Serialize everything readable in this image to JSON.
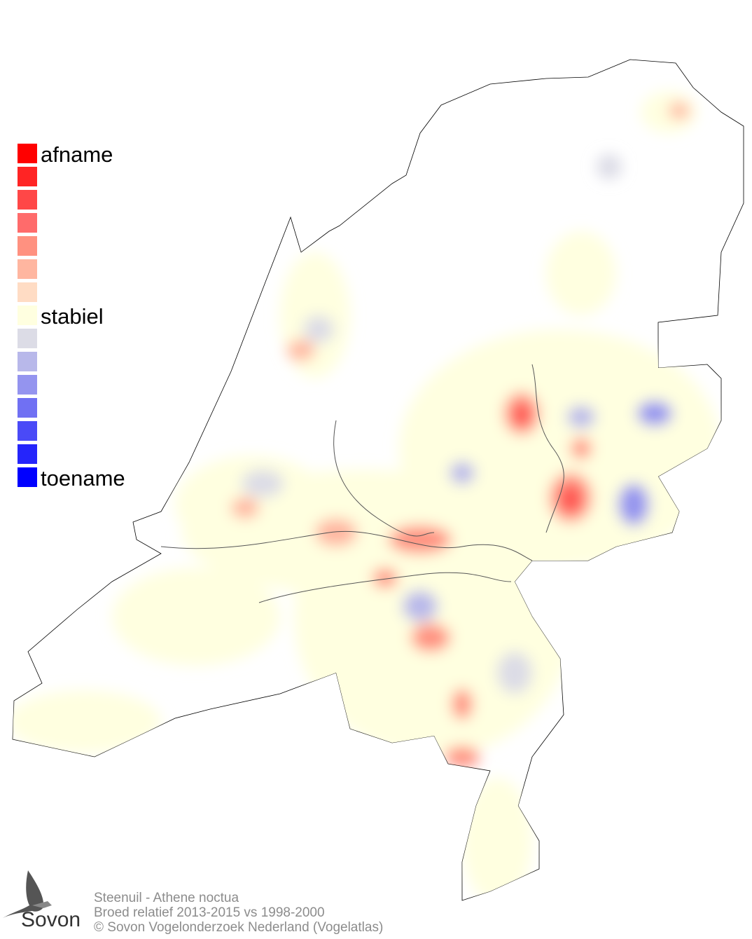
{
  "legend": {
    "top_label": "afname",
    "mid_label": "stabiel",
    "bottom_label": "toename",
    "colors": [
      "#ff0000",
      "#ff2424",
      "#ff4747",
      "#ff6b6b",
      "#ff9180",
      "#ffb6a0",
      "#ffdcc4",
      "#ffffe0",
      "#dcdce6",
      "#b8b8ea",
      "#9494ef",
      "#7070f3",
      "#4a4af7",
      "#2525fb",
      "#0000ff"
    ]
  },
  "footer": {
    "species": "Steenuil - Athene noctua",
    "subtitle": "Broed relatief 2013-2015 vs 1998-2000",
    "copyright": "© Sovon Vogelonderzoek Nederland (Vogelatlas)"
  },
  "logo": {
    "text": "Sovon"
  }
}
